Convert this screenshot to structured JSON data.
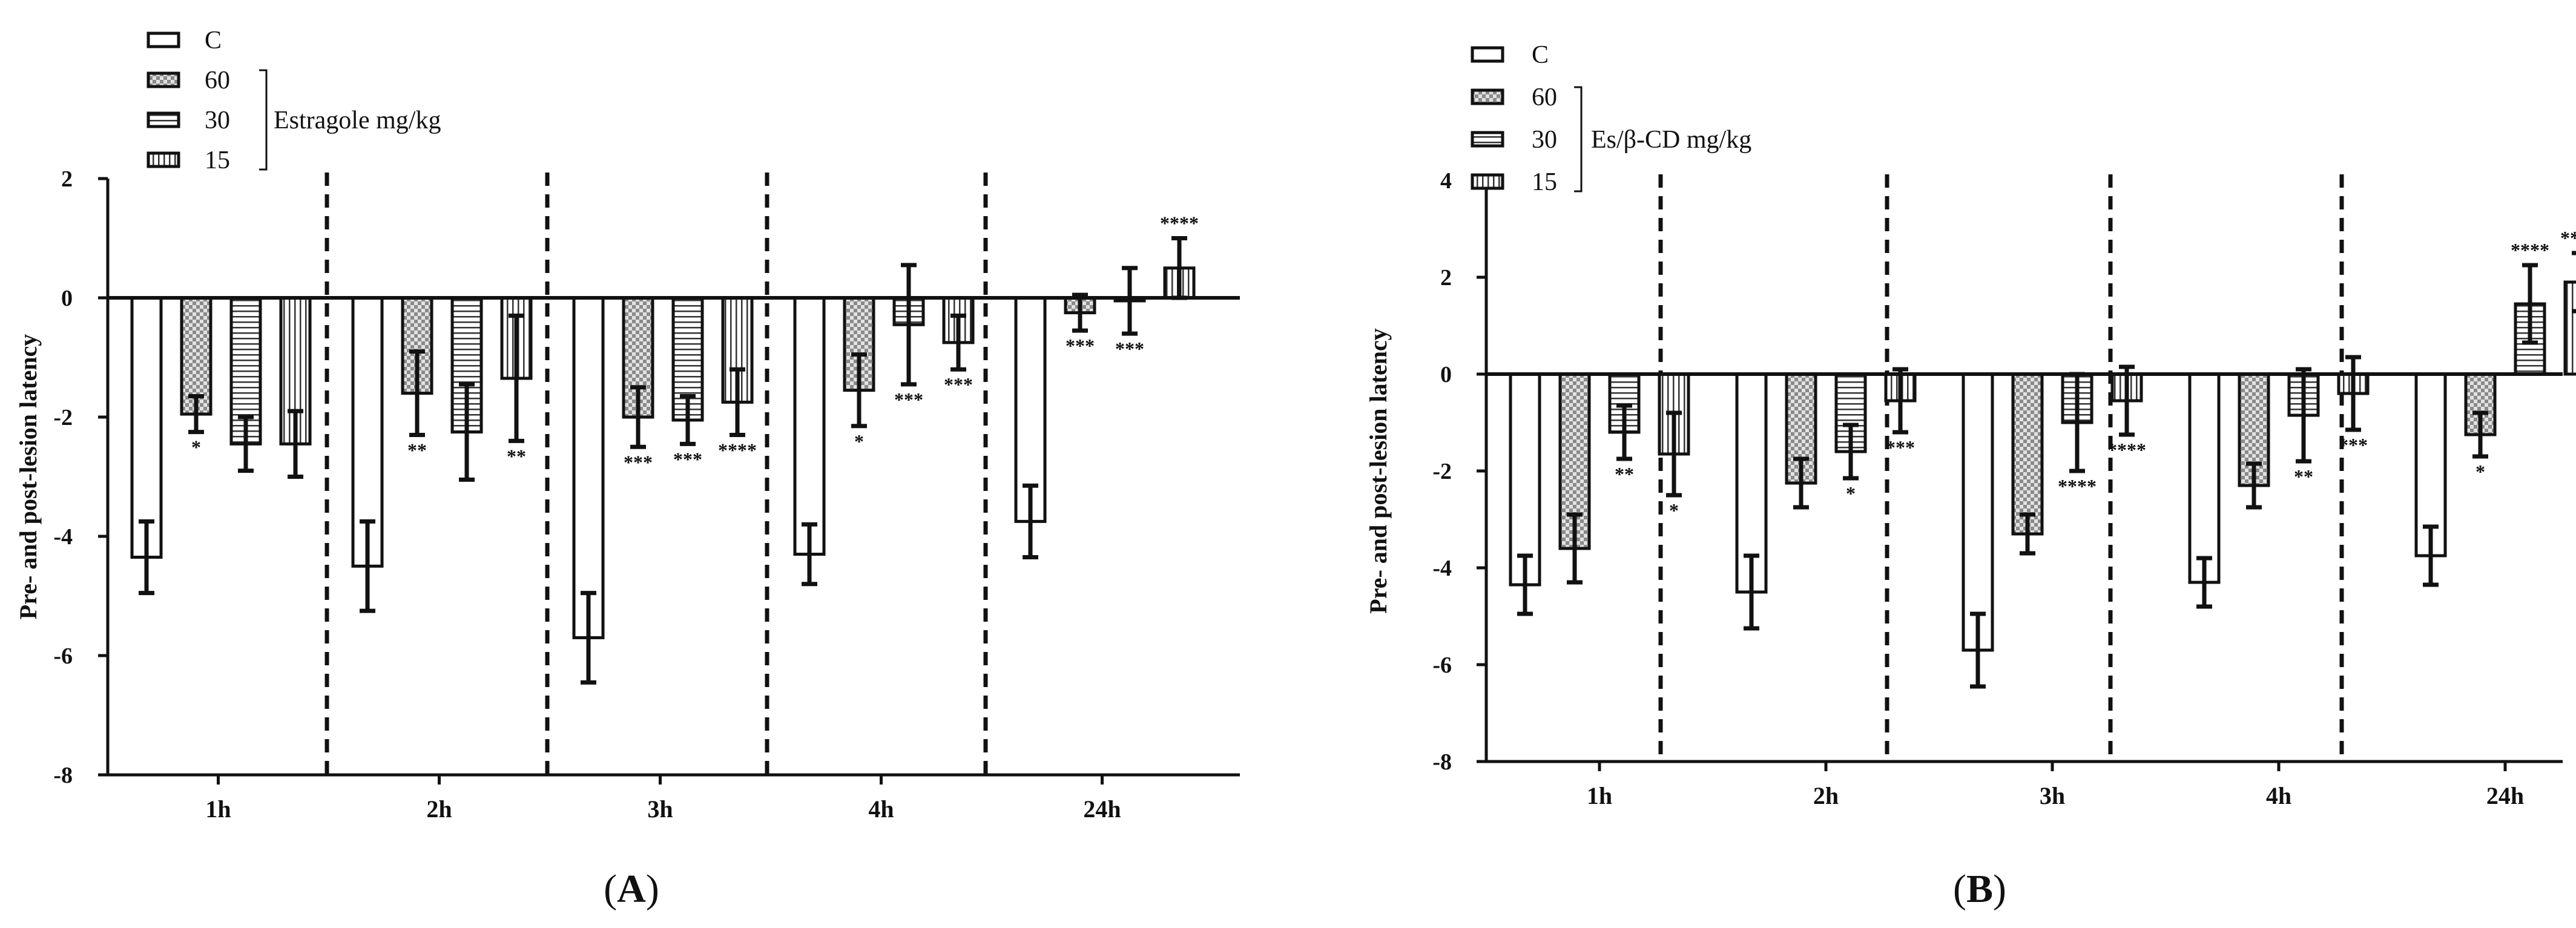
{
  "chart_data": [
    {
      "type": "bar",
      "panel_label": "A",
      "ylabel": "Pre- and post-lesion latency",
      "ylim": [
        -8,
        2
      ],
      "yticks": [
        2,
        0,
        -2,
        -4,
        -6,
        -8
      ],
      "categories": [
        "1h",
        "2h",
        "3h",
        "4h",
        "24h"
      ],
      "legend": {
        "entries": [
          "C",
          "60",
          "30",
          "15"
        ],
        "bracket_label": "Estragole mg/kg"
      },
      "series": [
        {
          "name": "C",
          "pattern": "open",
          "values": [
            -4.35,
            -4.5,
            -5.7,
            -4.3,
            -3.75
          ],
          "errors": [
            0.6,
            0.75,
            0.75,
            0.5,
            0.6
          ],
          "sig": [
            "",
            "",
            "",
            "",
            ""
          ]
        },
        {
          "name": "60",
          "pattern": "checker",
          "values": [
            -1.95,
            -1.6,
            -2.0,
            -1.55,
            -0.25
          ],
          "errors": [
            0.3,
            0.7,
            0.5,
            0.6,
            0.3
          ],
          "sig": [
            "*",
            "**",
            "***",
            "*",
            "***"
          ]
        },
        {
          "name": "30",
          "pattern": "hstripe",
          "values": [
            -2.45,
            -2.25,
            -2.05,
            -0.45,
            -0.05
          ],
          "errors": [
            0.45,
            0.8,
            0.4,
            1.0,
            0.55
          ],
          "sig": [
            "",
            "",
            "***",
            "***",
            "***"
          ]
        },
        {
          "name": "15",
          "pattern": "vstripe",
          "values": [
            -2.45,
            -1.35,
            -1.75,
            -0.75,
            0.5
          ],
          "errors": [
            0.55,
            1.05,
            0.55,
            0.45,
            0.5
          ],
          "sig": [
            "",
            "**",
            "****",
            "***",
            "****"
          ]
        }
      ]
    },
    {
      "type": "bar",
      "panel_label": "B",
      "ylabel": "Pre- and post-lesion latency",
      "ylim": [
        -8,
        4
      ],
      "yticks": [
        4,
        2,
        0,
        -2,
        -4,
        -6,
        -8
      ],
      "categories": [
        "1h",
        "2h",
        "3h",
        "4h",
        "24h"
      ],
      "legend": {
        "entries": [
          "C",
          "60",
          "30",
          "15"
        ],
        "bracket_label": "Es/β-CD mg/kg"
      },
      "series": [
        {
          "name": "C",
          "pattern": "open",
          "values": [
            -4.35,
            -4.5,
            -5.7,
            -4.3,
            -3.75
          ],
          "errors": [
            0.6,
            0.75,
            0.75,
            0.5,
            0.6
          ],
          "sig": [
            "",
            "",
            "",
            "",
            ""
          ]
        },
        {
          "name": "60",
          "pattern": "checker",
          "values": [
            -3.6,
            -2.25,
            -3.3,
            -2.3,
            -1.25
          ],
          "errors": [
            0.7,
            0.5,
            0.4,
            0.45,
            0.45
          ],
          "sig": [
            "",
            "",
            "",
            "",
            "*"
          ]
        },
        {
          "name": "30",
          "pattern": "hstripe",
          "values": [
            -1.2,
            -1.6,
            -1.0,
            -0.85,
            1.45
          ],
          "errors": [
            0.55,
            0.55,
            1.0,
            0.95,
            0.8
          ],
          "sig": [
            "**",
            "*",
            "****",
            "**",
            "****"
          ]
        },
        {
          "name": "15",
          "pattern": "vstripe",
          "values": [
            -1.65,
            -0.55,
            -0.55,
            -0.4,
            1.9
          ],
          "errors": [
            0.85,
            0.65,
            0.7,
            0.75,
            0.6
          ],
          "sig": [
            "*",
            "***",
            "****",
            "***",
            "****"
          ]
        }
      ]
    }
  ]
}
